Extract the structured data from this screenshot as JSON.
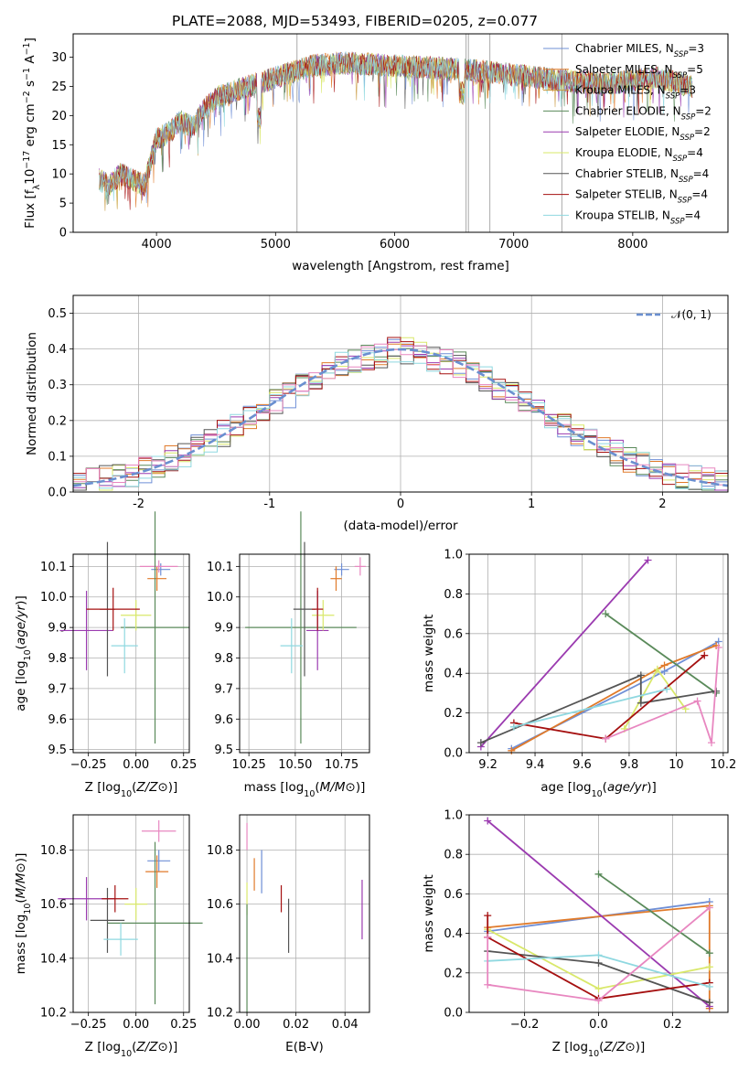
{
  "chart_data": [
    {
      "id": "spectrum",
      "type": "line",
      "title": "PLATE=2088, MJD=53493, FIBERID=0205, z=0.077",
      "xlabel": "wavelength [Angstrom, rest frame]",
      "ylabel_parts": [
        "Flux [f",
        "λ",
        "10",
        "−17",
        " erg cm",
        "−2",
        " s",
        "−1",
        " A",
        "−1",
        "]"
      ],
      "xlim": [
        3300,
        8800
      ],
      "ylim": [
        0,
        34
      ],
      "xticks": [
        4000,
        5000,
        6000,
        7000,
        8000
      ],
      "yticks": [
        0,
        5,
        10,
        15,
        20,
        25,
        30
      ],
      "grid": false,
      "continuum": {
        "x": [
          3520,
          3600,
          3700,
          3800,
          3900,
          4000,
          4100,
          4200,
          4300,
          4400,
          4500,
          4700,
          5000,
          5300,
          5600,
          6000,
          6500,
          7000,
          7400,
          7800,
          8200,
          8500
        ],
        "y": [
          9,
          8,
          10,
          9,
          8,
          16,
          17,
          19,
          18,
          21,
          23,
          24.5,
          26.5,
          28.5,
          29,
          28.5,
          28,
          27,
          26,
          25.5,
          26.5,
          25
        ]
      },
      "spike_lines": [
        {
          "x": 5180,
          "y": 34
        },
        {
          "x": 6600,
          "y": 0
        },
        {
          "x": 6620,
          "y": 0
        },
        {
          "x": 6800,
          "y": 0
        },
        {
          "x": 7405,
          "y": 0
        }
      ],
      "legend_position": "upper-right",
      "series": [
        {
          "label": "Chabrier MILES, N",
          "sub": "SSP",
          "count": "=3",
          "color": "#6f8fd6"
        },
        {
          "label": "Salpeter MILES, N",
          "sub": "SSP",
          "count": "=5",
          "color": "#e07a2a"
        },
        {
          "label": "Kroupa MILES, N",
          "sub": "SSP",
          "count": "=3",
          "color": "#c8973b"
        },
        {
          "label": "Chabrier ELODIE, N",
          "sub": "SSP",
          "count": "=2",
          "color": "#5a8a5a"
        },
        {
          "label": "Salpeter ELODIE, N",
          "sub": "SSP",
          "count": "=2",
          "color": "#9b3bb0"
        },
        {
          "label": "Kroupa ELODIE, N",
          "sub": "SSP",
          "count": "=4",
          "color": "#d9e86a"
        },
        {
          "label": "Chabrier STELIB, N",
          "sub": "SSP",
          "count": "=4",
          "color": "#555555"
        },
        {
          "label": "Salpeter STELIB, N",
          "sub": "SSP",
          "count": "=4",
          "color": "#a51010"
        },
        {
          "label": "Kroupa STELIB, N",
          "sub": "SSP",
          "count": "=4",
          "color": "#8fd8e0"
        }
      ]
    },
    {
      "id": "residuals",
      "type": "histogram",
      "xlabel": "(data-model)/error",
      "ylabel": "Normed distribution",
      "xlim": [
        -2.5,
        2.5
      ],
      "ylim": [
        0,
        0.55
      ],
      "xticks": [
        -2,
        -1,
        0,
        1,
        2
      ],
      "yticks": [
        0.0,
        0.1,
        0.2,
        0.3,
        0.4,
        0.5
      ],
      "grid": true,
      "legend": "𝒩(0, 1)",
      "legend_position": "upper-right",
      "reference_curve": {
        "name": "𝒩(0, 1)",
        "mu": 0,
        "sigma": 1,
        "color": "#6a8fd0"
      },
      "approx_profile": {
        "x": [
          -2.5,
          -2,
          -1.5,
          -1,
          -0.5,
          0,
          0.5,
          1,
          1.5,
          2,
          2.5
        ],
        "y": [
          0.02,
          0.055,
          0.13,
          0.24,
          0.35,
          0.4,
          0.35,
          0.24,
          0.13,
          0.055,
          0.02
        ]
      },
      "bin_width": 0.1,
      "colors": [
        "#6f8fd6",
        "#e07a2a",
        "#5a8a5a",
        "#9b3bb0",
        "#d9e86a",
        "#555555",
        "#a51010",
        "#8fd8e0",
        "#e887c0"
      ]
    },
    {
      "id": "age-vs-Z",
      "type": "scatter",
      "xlabel": "Z [log10(Z/Z⊙)]",
      "ylabel": "age  [log10(age/yr)]",
      "xlim": [
        -0.33,
        0.28
      ],
      "ylim": [
        9.49,
        10.14
      ],
      "xticks": [
        -0.25,
        0.0,
        0.25
      ],
      "xticklabels": [
        "−0.25",
        "0.00",
        "0.25"
      ],
      "yticks": [
        9.5,
        9.6,
        9.7,
        9.8,
        9.9,
        10.0,
        10.1
      ],
      "grid": true,
      "points": [
        {
          "x": 0.13,
          "y": 10.09,
          "xerr": 0.05,
          "yerr": 0.02,
          "color": "#6f8fd6"
        },
        {
          "x": 0.11,
          "y": 10.06,
          "xerr": 0.05,
          "yerr": 0.04,
          "color": "#e07a2a"
        },
        {
          "x": 0.12,
          "y": 10.1,
          "xerr": 0.1,
          "yerr": 0.02,
          "color": "#e887c0"
        },
        {
          "x": 0.1,
          "y": 9.9,
          "xerr": 0.18,
          "yerr": 0.38,
          "color": "#5a8a5a"
        },
        {
          "x": -0.26,
          "y": 9.89,
          "xerr": 0.14,
          "yerr": 0.13,
          "color": "#9b3bb0"
        },
        {
          "x": 0.0,
          "y": 9.94,
          "xerr": 0.08,
          "yerr": 0.05,
          "color": "#d9e86a"
        },
        {
          "x": -0.15,
          "y": 9.96,
          "xerr": 0.04,
          "yerr": 0.22,
          "color": "#555555"
        },
        {
          "x": -0.12,
          "y": 9.96,
          "xerr": 0.14,
          "yerr": 0.07,
          "color": "#a51010"
        },
        {
          "x": -0.06,
          "y": 9.84,
          "xerr": 0.07,
          "yerr": 0.09,
          "color": "#8fd8e0"
        }
      ]
    },
    {
      "id": "age-vs-mass",
      "type": "scatter",
      "xlabel": "mass [log10(M/M⊙)]",
      "ylabel": "",
      "xlim": [
        10.2,
        10.9
      ],
      "ylim": [
        9.49,
        10.14
      ],
      "xticks": [
        10.25,
        10.5,
        10.75
      ],
      "xticklabels": [
        "10.25",
        "10.50",
        "10.75"
      ],
      "yticks": [
        9.5,
        9.6,
        9.7,
        9.8,
        9.9,
        10.0,
        10.1
      ],
      "grid": true,
      "points": [
        {
          "x": 10.75,
          "y": 10.09,
          "xerr": 0.04,
          "yerr": 0.02,
          "color": "#6f8fd6"
        },
        {
          "x": 10.72,
          "y": 10.06,
          "xerr": 0.03,
          "yerr": 0.04,
          "color": "#e07a2a"
        },
        {
          "x": 10.85,
          "y": 10.1,
          "xerr": 0.03,
          "yerr": 0.03,
          "color": "#e887c0"
        },
        {
          "x": 10.53,
          "y": 9.9,
          "xerr": 0.3,
          "yerr": 0.38,
          "color": "#5a8a5a"
        },
        {
          "x": 10.62,
          "y": 9.89,
          "xerr": 0.06,
          "yerr": 0.13,
          "color": "#9b3bb0"
        },
        {
          "x": 10.65,
          "y": 9.94,
          "xerr": 0.06,
          "yerr": 0.05,
          "color": "#d9e86a"
        },
        {
          "x": 10.55,
          "y": 9.96,
          "xerr": 0.06,
          "yerr": 0.22,
          "color": "#555555"
        },
        {
          "x": 10.62,
          "y": 9.96,
          "xerr": 0.03,
          "yerr": 0.07,
          "color": "#a51010"
        },
        {
          "x": 10.48,
          "y": 9.84,
          "xerr": 0.06,
          "yerr": 0.09,
          "color": "#8fd8e0"
        }
      ]
    },
    {
      "id": "weight-vs-age",
      "type": "line",
      "xlabel": "age  [log10(age/yr)]",
      "ylabel": "mass weight",
      "xlim": [
        9.12,
        10.22
      ],
      "ylim": [
        0,
        1.0
      ],
      "xticks": [
        9.2,
        9.4,
        9.6,
        9.8,
        10.0,
        10.2
      ],
      "yticks": [
        0.0,
        0.2,
        0.4,
        0.6,
        0.8,
        1.0
      ],
      "grid": true,
      "series": [
        {
          "color": "#6f8fd6",
          "x": [
            9.3,
            9.95,
            10.18
          ],
          "y": [
            0.02,
            0.41,
            0.56
          ]
        },
        {
          "color": "#e07a2a",
          "x": [
            9.3,
            9.95,
            10.17
          ],
          "y": [
            0.01,
            0.44,
            0.54
          ]
        },
        {
          "color": "#5a8a5a",
          "x": [
            9.7,
            10.17
          ],
          "y": [
            0.7,
            0.3
          ]
        },
        {
          "color": "#9b3bb0",
          "x": [
            9.17,
            9.88
          ],
          "y": [
            0.03,
            0.97
          ]
        },
        {
          "color": "#d9e86a",
          "x": [
            9.78,
            9.92,
            10.04
          ],
          "y": [
            0.12,
            0.42,
            0.22
          ]
        },
        {
          "color": "#555555",
          "x": [
            9.17,
            9.85,
            9.85,
            10.17
          ],
          "y": [
            0.05,
            0.39,
            0.25,
            0.31
          ]
        },
        {
          "color": "#a51010",
          "x": [
            9.31,
            9.7,
            10.12
          ],
          "y": [
            0.15,
            0.07,
            0.49
          ]
        },
        {
          "color": "#8fd8e0",
          "x": [
            9.31,
            9.96
          ],
          "y": [
            0.13,
            0.32
          ]
        },
        {
          "color": "#e887c0",
          "x": [
            9.7,
            10.09,
            10.15,
            10.18
          ],
          "y": [
            0.07,
            0.26,
            0.05,
            0.53
          ]
        }
      ]
    },
    {
      "id": "mass-vs-Z",
      "type": "scatter",
      "xlabel": "Z [log10(Z/Z⊙)]",
      "ylabel": "mass [log10(M/M⊙)]",
      "xlim": [
        -0.33,
        0.28
      ],
      "ylim": [
        10.2,
        10.93
      ],
      "xticks": [
        -0.25,
        0.0,
        0.25
      ],
      "xticklabels": [
        "−0.25",
        "0.00",
        "0.25"
      ],
      "yticks": [
        10.2,
        10.4,
        10.6,
        10.8
      ],
      "grid": true,
      "points": [
        {
          "x": 0.12,
          "y": 10.87,
          "xerr": 0.09,
          "yerr": 0.04,
          "color": "#e887c0"
        },
        {
          "x": 0.12,
          "y": 10.76,
          "xerr": 0.06,
          "yerr": 0.04,
          "color": "#6f8fd6"
        },
        {
          "x": 0.11,
          "y": 10.72,
          "xerr": 0.06,
          "yerr": 0.06,
          "color": "#e07a2a"
        },
        {
          "x": 0.1,
          "y": 10.53,
          "xerr": 0.25,
          "yerr": 0.3,
          "color": "#5a8a5a"
        },
        {
          "x": -0.26,
          "y": 10.62,
          "xerr": 0.15,
          "yerr": 0.08,
          "color": "#9b3bb0"
        },
        {
          "x": 0.0,
          "y": 10.6,
          "xerr": 0.06,
          "yerr": 0.06,
          "color": "#d9e86a"
        },
        {
          "x": -0.15,
          "y": 10.54,
          "xerr": 0.09,
          "yerr": 0.12,
          "color": "#555555"
        },
        {
          "x": -0.11,
          "y": 10.62,
          "xerr": 0.07,
          "yerr": 0.05,
          "color": "#a51010"
        },
        {
          "x": -0.08,
          "y": 10.47,
          "xerr": 0.09,
          "yerr": 0.06,
          "color": "#8fd8e0"
        }
      ]
    },
    {
      "id": "mass-vs-EBV",
      "type": "scatter",
      "xlabel": "E(B-V)",
      "ylabel": "",
      "xlim": [
        -0.003,
        0.05
      ],
      "ylim": [
        10.2,
        10.93
      ],
      "xticks": [
        0.0,
        0.02,
        0.04
      ],
      "xticklabels": [
        "0.00",
        "0.02",
        "0.04"
      ],
      "yticks": [
        10.2,
        10.4,
        10.6,
        10.8
      ],
      "grid": true,
      "points": [
        {
          "x": 0.0,
          "y": 10.85,
          "xerr": 0,
          "yerr": 0.05,
          "color": "#e887c0"
        },
        {
          "x": 0.0,
          "y": 10.62,
          "xerr": 0,
          "yerr": 0.06,
          "color": "#d9e86a"
        },
        {
          "x": 0.0,
          "y": 10.4,
          "xerr": 0,
          "yerr": 0.2,
          "color": "#5a8a5a"
        },
        {
          "x": 0.003,
          "y": 10.71,
          "xerr": 0,
          "yerr": 0.06,
          "color": "#e07a2a"
        },
        {
          "x": 0.006,
          "y": 10.72,
          "xerr": 0,
          "yerr": 0.08,
          "color": "#6f8fd6"
        },
        {
          "x": 0.014,
          "y": 10.62,
          "xerr": 0,
          "yerr": 0.05,
          "color": "#a51010"
        },
        {
          "x": 0.017,
          "y": 10.52,
          "xerr": 0,
          "yerr": 0.1,
          "color": "#555555"
        },
        {
          "x": 0.047,
          "y": 10.58,
          "xerr": 0,
          "yerr": 0.11,
          "color": "#9b3bb0"
        }
      ]
    },
    {
      "id": "weight-vs-Z",
      "type": "line",
      "xlabel": "Z [log10(Z/Z⊙)]",
      "ylabel": "mass weight",
      "xlim": [
        -0.35,
        0.35
      ],
      "ylim": [
        0,
        1.0
      ],
      "xticks": [
        -0.2,
        0.0,
        0.2
      ],
      "xticklabels": [
        "−0.2",
        "0.0",
        "0.2"
      ],
      "yticks": [
        0.0,
        0.2,
        0.4,
        0.6,
        0.8,
        1.0
      ],
      "grid": true,
      "series": [
        {
          "color": "#6f8fd6",
          "x": [
            -0.3,
            0.3
          ],
          "y": [
            0.41,
            0.56
          ]
        },
        {
          "color": "#e07a2a",
          "x": [
            -0.3,
            0.3,
            0.3
          ],
          "y": [
            0.43,
            0.54,
            0.02
          ]
        },
        {
          "color": "#5a8a5a",
          "x": [
            0.0,
            0.3
          ],
          "y": [
            0.7,
            0.3
          ]
        },
        {
          "color": "#9b3bb0",
          "x": [
            -0.3,
            0.3
          ],
          "y": [
            0.97,
            0.03
          ]
        },
        {
          "color": "#d9e86a",
          "x": [
            -0.3,
            0.0,
            0.3
          ],
          "y": [
            0.42,
            0.12,
            0.23
          ]
        },
        {
          "color": "#555555",
          "x": [
            -0.3,
            0.0,
            0.3
          ],
          "y": [
            0.31,
            0.25,
            0.05
          ]
        },
        {
          "color": "#a51010",
          "x": [
            -0.3,
            -0.3,
            0.0,
            0.3
          ],
          "y": [
            0.49,
            0.38,
            0.07,
            0.15
          ]
        },
        {
          "color": "#8fd8e0",
          "x": [
            -0.3,
            0.0,
            0.3
          ],
          "y": [
            0.26,
            0.29,
            0.13
          ]
        },
        {
          "color": "#e887c0",
          "x": [
            -0.3,
            -0.3,
            0.0,
            0.3
          ],
          "y": [
            0.38,
            0.14,
            0.06,
            0.53
          ]
        }
      ]
    }
  ]
}
